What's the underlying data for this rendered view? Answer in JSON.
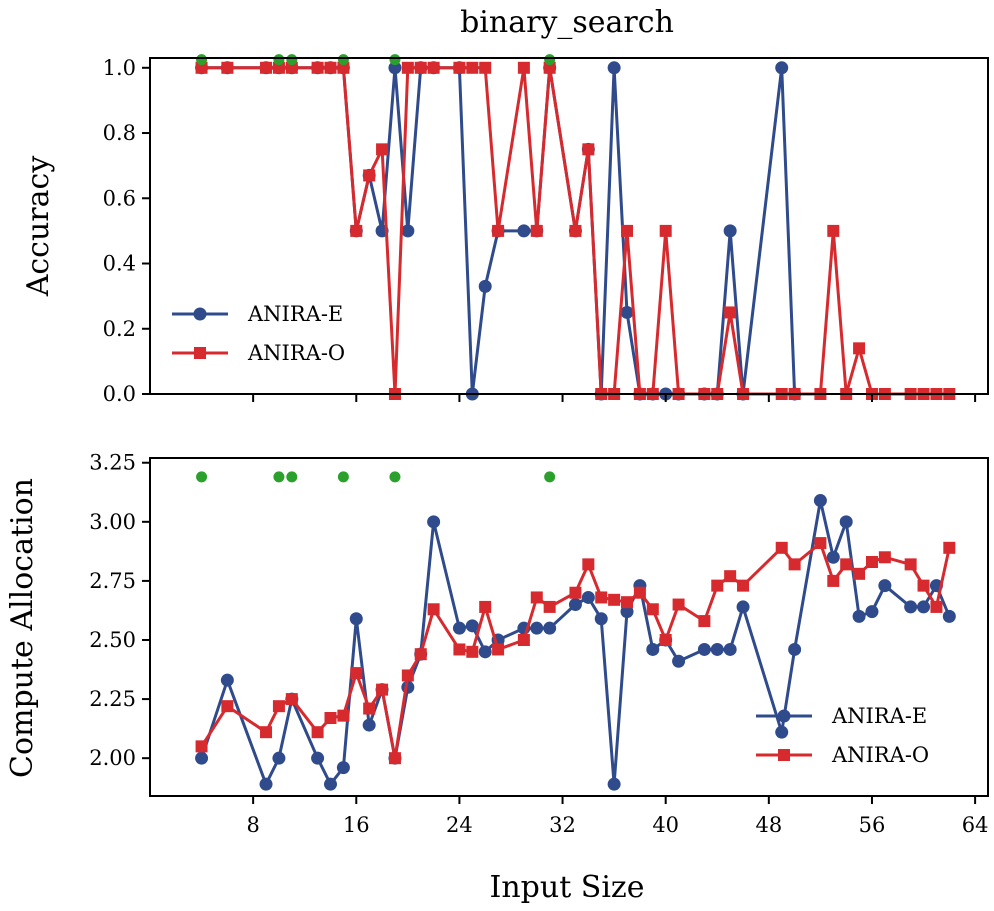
{
  "chart_data": {
    "type": "line",
    "title": "binary_search",
    "xlabel": "Input Size",
    "xlim": [
      0,
      65
    ],
    "xticks": [
      8,
      16,
      24,
      32,
      40,
      48,
      56,
      64
    ],
    "x_tick_labels": [
      "8",
      "16",
      "24",
      "32",
      "40",
      "48",
      "56",
      "64"
    ],
    "colors": {
      "anira_e": "#2f4b8c",
      "anira_o": "#d62a2e",
      "marker_green": "#2ca02c"
    },
    "panels": [
      {
        "id": "accuracy",
        "ylabel": "Accuracy",
        "ylim": [
          0,
          1.03
        ],
        "yticks": [
          0.0,
          0.2,
          0.4,
          0.6,
          0.8,
          1.0
        ],
        "y_tick_labels": [
          "0.0",
          "0.2",
          "0.4",
          "0.6",
          "0.8",
          "1.0"
        ],
        "legend_position": "lower-left",
        "green_points": {
          "x": [
            4,
            10,
            11,
            15,
            19,
            31
          ],
          "y": 1.025
        },
        "series": [
          {
            "name": "ANIRA-E",
            "marker": "circle",
            "x": [
              4,
              6,
              9,
              10,
              11,
              13,
              14,
              15,
              16,
              17,
              18,
              19,
              20,
              21,
              22,
              24,
              25,
              26,
              27,
              29,
              30,
              31,
              33,
              34,
              35,
              36,
              37,
              38,
              39,
              40,
              41,
              43,
              44,
              45,
              46,
              49,
              50
            ],
            "y": [
              1,
              1,
              1,
              1,
              1,
              1,
              1,
              1,
              0.5,
              0.67,
              0.5,
              1,
              0.5,
              1,
              1,
              1,
              0,
              0.33,
              0.5,
              0.5,
              0.5,
              1,
              0.5,
              0.75,
              0,
              1,
              0.25,
              0,
              0,
              0,
              0,
              0,
              0,
              0.5,
              0,
              1,
              0
            ]
          },
          {
            "name": "ANIRA-O",
            "marker": "square",
            "x": [
              4,
              6,
              9,
              10,
              11,
              13,
              14,
              15,
              16,
              17,
              18,
              19,
              20,
              21,
              22,
              24,
              25,
              26,
              27,
              29,
              30,
              31,
              33,
              34,
              35,
              36,
              37,
              38,
              39,
              40,
              41,
              43,
              44,
              45,
              46,
              49,
              50,
              52,
              53,
              54,
              55,
              56,
              57,
              59,
              60,
              61,
              62
            ],
            "y": [
              1,
              1,
              1,
              1,
              1,
              1,
              1,
              1,
              0.5,
              0.67,
              0.75,
              0,
              1,
              1,
              1,
              1,
              1,
              1,
              0.5,
              1,
              0.5,
              1,
              0.5,
              0.75,
              0,
              0,
              0.5,
              0,
              0,
              0.5,
              0,
              0,
              0,
              0.25,
              0,
              0,
              0,
              0,
              0.5,
              0,
              0.14,
              0,
              0,
              0,
              0,
              0,
              0
            ]
          }
        ]
      },
      {
        "id": "compute",
        "ylabel": "Compute Allocation",
        "ylim": [
          1.84,
          3.27
        ],
        "yticks": [
          2.0,
          2.25,
          2.5,
          2.75,
          3.0,
          3.25
        ],
        "y_tick_labels": [
          "2.00",
          "2.25",
          "2.50",
          "2.75",
          "3.00",
          "3.25"
        ],
        "legend_position": "lower-right",
        "green_points": {
          "x": [
            4,
            10,
            11,
            15,
            19,
            31
          ],
          "y": 3.19
        },
        "series": [
          {
            "name": "ANIRA-E",
            "marker": "circle",
            "x": [
              4,
              6,
              9,
              10,
              11,
              13,
              14,
              15,
              16,
              17,
              18,
              19,
              20,
              21,
              22,
              24,
              25,
              26,
              27,
              29,
              30,
              31,
              33,
              34,
              35,
              36,
              37,
              38,
              39,
              40,
              41,
              43,
              44,
              45,
              46,
              49,
              50,
              52,
              53,
              54,
              55,
              56,
              57,
              59,
              60,
              61,
              62
            ],
            "y": [
              2.0,
              2.33,
              1.89,
              2.0,
              2.25,
              2.0,
              1.89,
              1.96,
              2.59,
              2.14,
              2.29,
              2.0,
              2.3,
              2.44,
              3.0,
              2.55,
              2.56,
              2.45,
              2.5,
              2.55,
              2.55,
              2.55,
              2.65,
              2.68,
              2.59,
              1.89,
              2.62,
              2.73,
              2.46,
              2.5,
              2.41,
              2.46,
              2.46,
              2.46,
              2.64,
              2.11,
              2.46,
              3.09,
              2.85,
              3.0,
              2.6,
              2.62,
              2.73,
              2.64,
              2.64,
              2.73,
              2.6
            ]
          },
          {
            "name": "ANIRA-O",
            "marker": "square",
            "x": [
              4,
              6,
              9,
              10,
              11,
              13,
              14,
              15,
              16,
              17,
              18,
              19,
              20,
              21,
              22,
              24,
              25,
              26,
              27,
              29,
              30,
              31,
              33,
              34,
              35,
              36,
              37,
              38,
              39,
              40,
              41,
              43,
              44,
              45,
              46,
              49,
              50,
              52,
              53,
              54,
              55,
              56,
              57,
              59,
              60,
              61,
              62
            ],
            "y": [
              2.05,
              2.22,
              2.11,
              2.22,
              2.25,
              2.11,
              2.17,
              2.18,
              2.36,
              2.21,
              2.29,
              2.0,
              2.35,
              2.44,
              2.63,
              2.46,
              2.45,
              2.64,
              2.46,
              2.5,
              2.68,
              2.64,
              2.7,
              2.82,
              2.68,
              2.67,
              2.66,
              2.7,
              2.63,
              2.5,
              2.65,
              2.58,
              2.73,
              2.77,
              2.73,
              2.89,
              2.82,
              2.91,
              2.75,
              2.82,
              2.78,
              2.83,
              2.85,
              2.82,
              2.73,
              2.64,
              2.89
            ]
          }
        ]
      }
    ]
  }
}
